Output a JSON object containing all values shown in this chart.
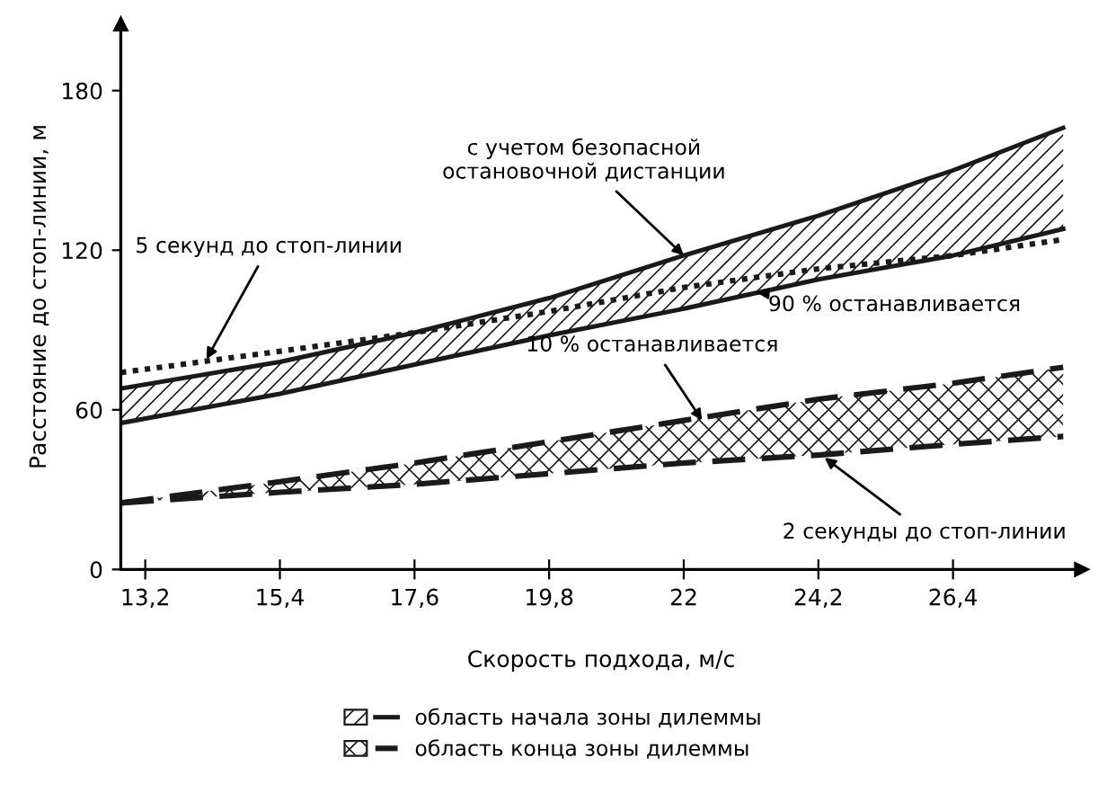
{
  "chart_data": {
    "type": "line",
    "xlabel": "Скорость подхода, м/с",
    "ylabel": "Расстояние до стоп-линии, м",
    "x": [
      12.8,
      15.4,
      17.6,
      19.8,
      22,
      24.2,
      26.4,
      28.2
    ],
    "series": [
      {
        "name": "область начала зоны дилеммы",
        "color": "#1a1a1a",
        "line_style": "solid",
        "values": [
          68,
          78,
          89,
          102,
          118,
          133,
          150,
          166
        ],
        "lower": [
          55,
          66,
          77,
          88,
          98,
          109,
          118,
          128
        ],
        "upper": [
          68,
          78,
          89,
          102,
          118,
          133,
          150,
          166
        ]
      },
      {
        "color": "#1a1a1a",
        "line_style": "solid",
        "values": [
          55,
          66,
          77,
          88,
          98,
          109,
          118,
          128
        ]
      },
      {
        "color": "#1a1a1a",
        "line_style": "dotted",
        "values": [
          74,
          82,
          89,
          97,
          106,
          113,
          118,
          124
        ]
      },
      {
        "name": "область конца зоны дилеммы",
        "color": "#1a1a1a",
        "line_style": "dashed",
        "values": [
          25,
          33,
          40,
          48,
          56,
          64,
          70,
          76
        ],
        "lower": [
          25,
          29,
          32,
          36,
          40,
          43,
          47,
          50
        ],
        "upper": [
          25,
          33,
          40,
          48,
          56,
          64,
          70,
          76
        ]
      },
      {
        "color": "#1a1a1a",
        "line_style": "dashed",
        "values": [
          25,
          29,
          32,
          36,
          40,
          43,
          47,
          50
        ]
      }
    ],
    "annotations": [
      {
        "text": "с учетом безопасной\nостановочной дистанции",
        "x": 22,
        "y": 118
      },
      {
        "text": "90 % останавливается",
        "x": 23.2,
        "y": 104
      },
      {
        "text": "5 секунд до стоп-линии",
        "x": 14.2,
        "y": 79
      },
      {
        "text": "10 % останавливается",
        "x": 22.3,
        "y": 56
      },
      {
        "text": "2 секунды до стоп-линии",
        "x": 24.3,
        "y": 42
      }
    ],
    "xlim": [
      12.8,
      28.5
    ],
    "ylim": [
      0,
      205
    ],
    "xticks": [
      {
        "value": 13.2,
        "label": "13,2"
      },
      {
        "value": 15.4,
        "label": "15,4"
      },
      {
        "value": 17.6,
        "label": "17,6"
      },
      {
        "value": 19.8,
        "label": "19,8"
      },
      22,
      {
        "value": 24.2,
        "label": "24,2"
      },
      {
        "value": 26.4,
        "label": "26,4"
      }
    ],
    "yticks": [
      0,
      60,
      120,
      180
    ],
    "grid": false,
    "legend": "bottom",
    "marker": "none"
  }
}
